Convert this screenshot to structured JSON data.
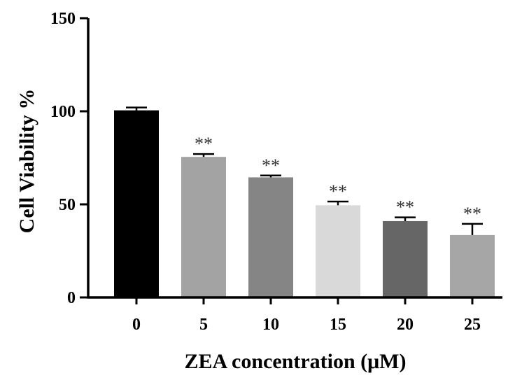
{
  "chart_data": {
    "type": "bar",
    "title": "",
    "xlabel": "ZEA concentration (μM)",
    "ylabel": "Cell Viability %",
    "categories": [
      "0",
      "5",
      "10",
      "15",
      "20",
      "25"
    ],
    "values": [
      100.5,
      75.5,
      64.5,
      49.5,
      41,
      33.5
    ],
    "errors": [
      1.5,
      1.5,
      1,
      2,
      2,
      6
    ],
    "significance": [
      "",
      "**",
      "**",
      "**",
      "**",
      "**"
    ],
    "bar_colors": [
      "#000000",
      "#a3a3a3",
      "#858585",
      "#d9d9d9",
      "#666666",
      "#a6a6a6"
    ],
    "ylim": [
      0,
      150
    ],
    "yticks": [
      0,
      50,
      100,
      150
    ],
    "grid": false,
    "legend": "none"
  }
}
